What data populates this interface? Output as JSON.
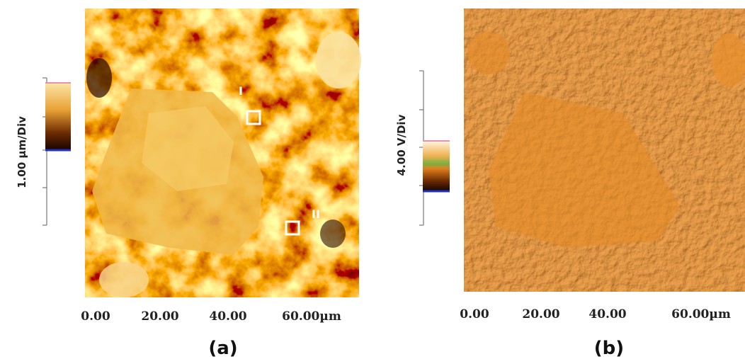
{
  "panels": [
    {
      "caption": "(a)",
      "scale_label": "1.00 µm/Div",
      "x_ticks": [
        "0.00",
        "20.00",
        "40.00",
        "60.00µm"
      ],
      "markers": [
        "I",
        "II"
      ]
    },
    {
      "caption": "(b)",
      "scale_label": "4.00 V/Div",
      "x_ticks": [
        "0.00",
        "20.00",
        "40.00",
        "60.00µm"
      ]
    }
  ]
}
